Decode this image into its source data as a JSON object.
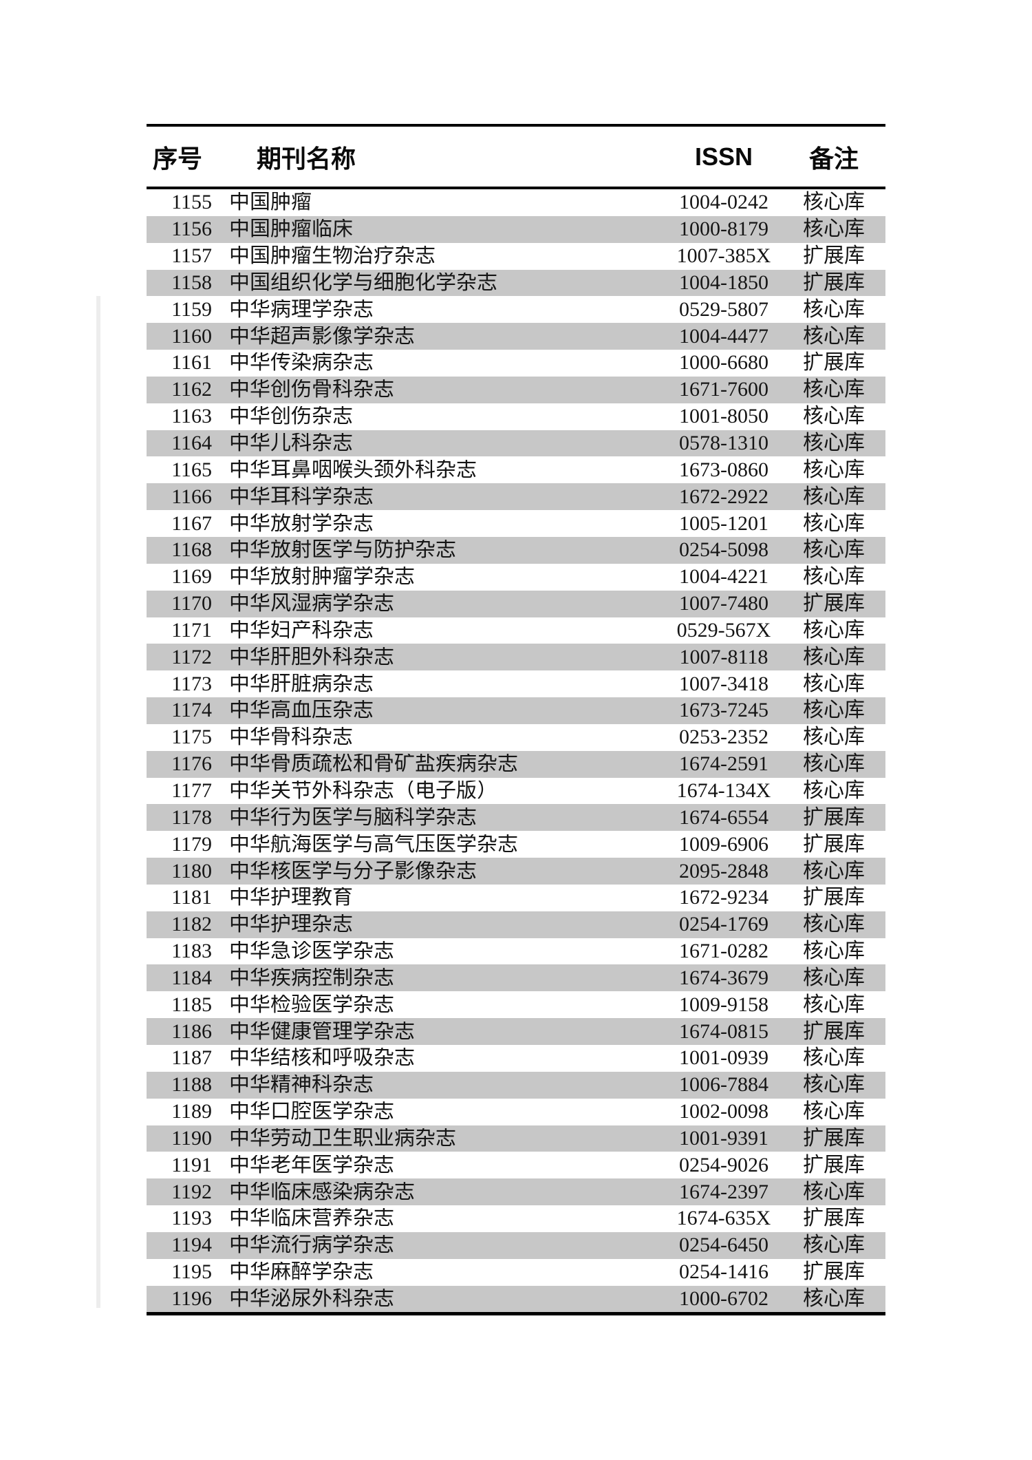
{
  "table": {
    "columns": {
      "seq": "序号",
      "name": "期刊名称",
      "issn": "ISSN",
      "note": "备注"
    },
    "note_values": {
      "core": "核心库",
      "extended": "扩展库"
    },
    "rows": [
      {
        "seq": "1155",
        "name": "中国肿瘤",
        "issn": "1004-0242",
        "note": "核心库"
      },
      {
        "seq": "1156",
        "name": "中国肿瘤临床",
        "issn": "1000-8179",
        "note": "核心库"
      },
      {
        "seq": "1157",
        "name": "中国肿瘤生物治疗杂志",
        "issn": "1007-385X",
        "note": "扩展库"
      },
      {
        "seq": "1158",
        "name": "中国组织化学与细胞化学杂志",
        "issn": "1004-1850",
        "note": "扩展库"
      },
      {
        "seq": "1159",
        "name": "中华病理学杂志",
        "issn": "0529-5807",
        "note": "核心库"
      },
      {
        "seq": "1160",
        "name": "中华超声影像学杂志",
        "issn": "1004-4477",
        "note": "核心库"
      },
      {
        "seq": "1161",
        "name": "中华传染病杂志",
        "issn": "1000-6680",
        "note": "扩展库"
      },
      {
        "seq": "1162",
        "name": "中华创伤骨科杂志",
        "issn": "1671-7600",
        "note": "核心库"
      },
      {
        "seq": "1163",
        "name": "中华创伤杂志",
        "issn": "1001-8050",
        "note": "核心库"
      },
      {
        "seq": "1164",
        "name": "中华儿科杂志",
        "issn": "0578-1310",
        "note": "核心库"
      },
      {
        "seq": "1165",
        "name": "中华耳鼻咽喉头颈外科杂志",
        "issn": "1673-0860",
        "note": "核心库"
      },
      {
        "seq": "1166",
        "name": "中华耳科学杂志",
        "issn": "1672-2922",
        "note": "核心库"
      },
      {
        "seq": "1167",
        "name": "中华放射学杂志",
        "issn": "1005-1201",
        "note": "核心库"
      },
      {
        "seq": "1168",
        "name": "中华放射医学与防护杂志",
        "issn": "0254-5098",
        "note": "核心库"
      },
      {
        "seq": "1169",
        "name": "中华放射肿瘤学杂志",
        "issn": "1004-4221",
        "note": "核心库"
      },
      {
        "seq": "1170",
        "name": "中华风湿病学杂志",
        "issn": "1007-7480",
        "note": "扩展库"
      },
      {
        "seq": "1171",
        "name": "中华妇产科杂志",
        "issn": "0529-567X",
        "note": "核心库"
      },
      {
        "seq": "1172",
        "name": "中华肝胆外科杂志",
        "issn": "1007-8118",
        "note": "核心库"
      },
      {
        "seq": "1173",
        "name": "中华肝脏病杂志",
        "issn": "1007-3418",
        "note": "核心库"
      },
      {
        "seq": "1174",
        "name": "中华高血压杂志",
        "issn": "1673-7245",
        "note": "核心库"
      },
      {
        "seq": "1175",
        "name": "中华骨科杂志",
        "issn": "0253-2352",
        "note": "核心库"
      },
      {
        "seq": "1176",
        "name": "中华骨质疏松和骨矿盐疾病杂志",
        "issn": "1674-2591",
        "note": "核心库"
      },
      {
        "seq": "1177",
        "name": "中华关节外科杂志（电子版）",
        "issn": "1674-134X",
        "note": "核心库"
      },
      {
        "seq": "1178",
        "name": "中华行为医学与脑科学杂志",
        "issn": "1674-6554",
        "note": "扩展库"
      },
      {
        "seq": "1179",
        "name": "中华航海医学与高气压医学杂志",
        "issn": "1009-6906",
        "note": "扩展库"
      },
      {
        "seq": "1180",
        "name": "中华核医学与分子影像杂志",
        "issn": "2095-2848",
        "note": "核心库"
      },
      {
        "seq": "1181",
        "name": "中华护理教育",
        "issn": "1672-9234",
        "note": "扩展库"
      },
      {
        "seq": "1182",
        "name": "中华护理杂志",
        "issn": "0254-1769",
        "note": "核心库"
      },
      {
        "seq": "1183",
        "name": "中华急诊医学杂志",
        "issn": "1671-0282",
        "note": "核心库"
      },
      {
        "seq": "1184",
        "name": "中华疾病控制杂志",
        "issn": "1674-3679",
        "note": "核心库"
      },
      {
        "seq": "1185",
        "name": "中华检验医学杂志",
        "issn": "1009-9158",
        "note": "核心库"
      },
      {
        "seq": "1186",
        "name": "中华健康管理学杂志",
        "issn": "1674-0815",
        "note": "扩展库"
      },
      {
        "seq": "1187",
        "name": "中华结核和呼吸杂志",
        "issn": "1001-0939",
        "note": "核心库"
      },
      {
        "seq": "1188",
        "name": "中华精神科杂志",
        "issn": "1006-7884",
        "note": "核心库"
      },
      {
        "seq": "1189",
        "name": "中华口腔医学杂志",
        "issn": "1002-0098",
        "note": "核心库"
      },
      {
        "seq": "1190",
        "name": "中华劳动卫生职业病杂志",
        "issn": "1001-9391",
        "note": "扩展库"
      },
      {
        "seq": "1191",
        "name": "中华老年医学杂志",
        "issn": "0254-9026",
        "note": "扩展库"
      },
      {
        "seq": "1192",
        "name": "中华临床感染病杂志",
        "issn": "1674-2397",
        "note": "核心库"
      },
      {
        "seq": "1193",
        "name": "中华临床营养杂志",
        "issn": "1674-635X",
        "note": "扩展库"
      },
      {
        "seq": "1194",
        "name": "中华流行病学杂志",
        "issn": "0254-6450",
        "note": "核心库"
      },
      {
        "seq": "1195",
        "name": "中华麻醉学杂志",
        "issn": "0254-1416",
        "note": "扩展库"
      },
      {
        "seq": "1196",
        "name": "中华泌尿外科杂志",
        "issn": "1000-6702",
        "note": "核心库"
      }
    ]
  },
  "colors": {
    "stripe_gray": "#c7c7c7",
    "rule_black": "#000000",
    "text": "#151515"
  }
}
